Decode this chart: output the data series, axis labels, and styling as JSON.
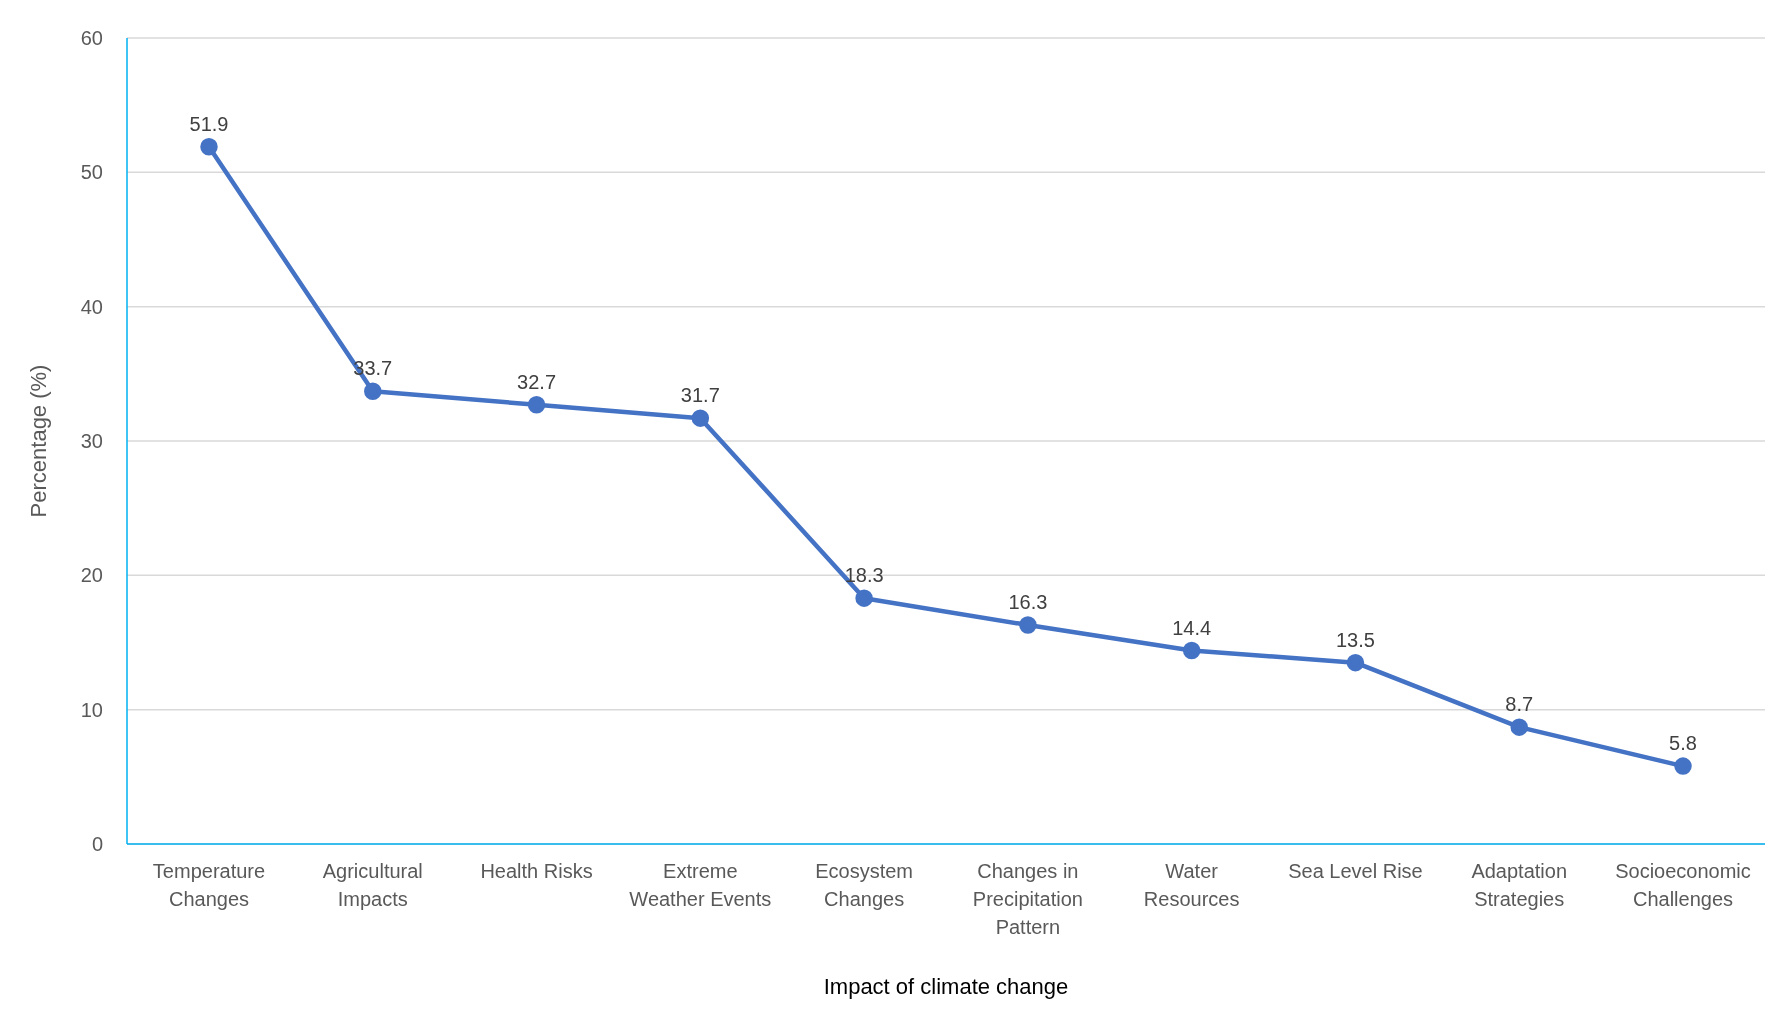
{
  "chart_data": {
    "type": "line",
    "xlabel": "Impact of climate change",
    "ylabel": "Percentage (%)",
    "categories": [
      "Temperature Changes",
      "Agricultural Impacts",
      "Health Risks",
      "Extreme Weather Events",
      "Ecosystem Changes",
      "Changes in Precipitation Pattern",
      "Water Resources",
      "Sea Level Rise",
      "Adaptation Strategies",
      "Socioeconomic Challenges"
    ],
    "series": [
      {
        "color": "#4472c4",
        "values": [
          51.9,
          33.7,
          32.7,
          31.7,
          18.3,
          16.3,
          14.4,
          13.5,
          8.7,
          5.8
        ]
      }
    ],
    "ylim": [
      0,
      60
    ],
    "yticks": [
      0,
      10,
      20,
      30,
      40,
      50,
      60
    ],
    "grid": "y",
    "marker": "circle",
    "line_style": "solid",
    "data_labels": true,
    "legend": false
  }
}
